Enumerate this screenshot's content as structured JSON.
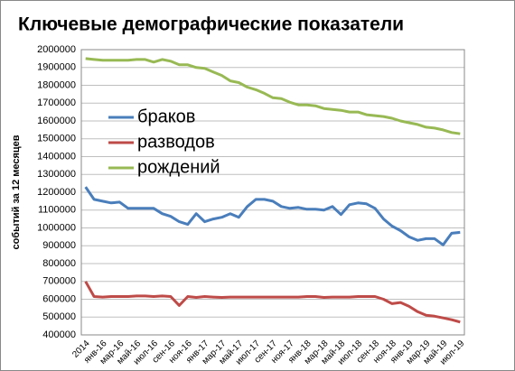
{
  "chart_data": {
    "type": "line",
    "title": "Ключевые демографические показатели",
    "y_label": "событий за 12 месяцев",
    "categories": [
      "2014",
      null,
      "янв-16",
      null,
      "мар-16",
      null,
      "май-16",
      null,
      "июл-16",
      null,
      "сен-16",
      null,
      "ноя-16",
      null,
      "янв-17",
      null,
      "мар-17",
      null,
      "май-17",
      null,
      "июл-17",
      null,
      "сен-17",
      null,
      "ноя-17",
      null,
      "янв-18",
      null,
      "мар-18",
      null,
      "май-18",
      null,
      "июл-18",
      null,
      "сен-18",
      null,
      "ноя-18",
      null,
      "янв-19",
      null,
      "мар-19",
      null,
      "май-19",
      null,
      "июл-19"
    ],
    "series": [
      {
        "name": "браков",
        "color": "#4a7ebb",
        "values": [
          1230000,
          1160000,
          1150000,
          1140000,
          1145000,
          1110000,
          1110000,
          1110000,
          1110000,
          1080000,
          1065000,
          1035000,
          1020000,
          1080000,
          1035000,
          1050000,
          1060000,
          1080000,
          1060000,
          1120000,
          1160000,
          1160000,
          1150000,
          1120000,
          1110000,
          1115000,
          1105000,
          1105000,
          1100000,
          1120000,
          1075000,
          1130000,
          1140000,
          1135000,
          1110000,
          1050000,
          1010000,
          985000,
          950000,
          930000,
          940000,
          940000,
          905000,
          970000,
          975000
        ]
      },
      {
        "name": "разводов",
        "color": "#be4b48",
        "values": [
          700000,
          615000,
          612000,
          615000,
          615000,
          615000,
          618000,
          618000,
          615000,
          618000,
          615000,
          565000,
          615000,
          610000,
          615000,
          612000,
          610000,
          612000,
          612000,
          612000,
          612000,
          612000,
          612000,
          612000,
          612000,
          612000,
          615000,
          615000,
          610000,
          612000,
          612000,
          612000,
          615000,
          615000,
          615000,
          600000,
          575000,
          582000,
          560000,
          530000,
          510000,
          505000,
          495000,
          485000,
          472000
        ]
      },
      {
        "name": "рождений",
        "color": "#98b954",
        "values": [
          1950000,
          1945000,
          1940000,
          1940000,
          1940000,
          1940000,
          1945000,
          1945000,
          1930000,
          1945000,
          1935000,
          1915000,
          1915000,
          1900000,
          1895000,
          1875000,
          1855000,
          1825000,
          1815000,
          1790000,
          1775000,
          1755000,
          1730000,
          1725000,
          1705000,
          1690000,
          1690000,
          1685000,
          1670000,
          1665000,
          1660000,
          1650000,
          1650000,
          1635000,
          1630000,
          1625000,
          1615000,
          1600000,
          1590000,
          1580000,
          1565000,
          1560000,
          1550000,
          1535000,
          1528000
        ]
      }
    ],
    "ylim": [
      400000,
      2000000
    ],
    "yticks": [
      400000,
      500000,
      600000,
      700000,
      800000,
      900000,
      1000000,
      1100000,
      1200000,
      1300000,
      1400000,
      1500000,
      1600000,
      1700000,
      1800000,
      1900000,
      2000000
    ],
    "grid": true
  }
}
